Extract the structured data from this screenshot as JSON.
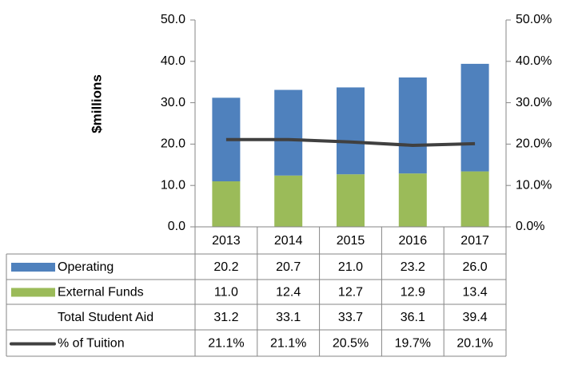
{
  "chart_data": {
    "type": "bar",
    "stacked": true,
    "y_label": "$millions",
    "categories": [
      "2013",
      "2014",
      "2015",
      "2016",
      "2017"
    ],
    "series": [
      {
        "name": "Operating",
        "color": "#4f81bd",
        "values": [
          20.2,
          20.7,
          21.0,
          23.2,
          26.0
        ],
        "value_labels": [
          "20.2",
          "20.7",
          "21.0",
          "23.2",
          "26.0"
        ]
      },
      {
        "name": "External Funds",
        "color": "#9bbb59",
        "values": [
          11.0,
          12.4,
          12.7,
          12.9,
          13.4
        ],
        "value_labels": [
          "11.0",
          "12.4",
          "12.7",
          "12.9",
          "13.4"
        ]
      },
      {
        "name": "% of Tuition",
        "type": "line",
        "axis": "y2",
        "color": "#404040",
        "values": [
          21.1,
          21.1,
          20.5,
          19.7,
          20.1
        ],
        "value_labels": [
          "21.1%",
          "21.1%",
          "20.5%",
          "19.7%",
          "20.1%"
        ]
      }
    ],
    "totals": {
      "name": "Total Student Aid",
      "values": [
        31.2,
        33.1,
        33.7,
        36.1,
        39.4
      ],
      "value_labels": [
        "31.2",
        "33.1",
        "33.7",
        "36.1",
        "39.4"
      ]
    },
    "ylim": [
      0,
      50
    ],
    "yticks": [
      {
        "value": 0,
        "label": "0.0"
      },
      {
        "value": 10,
        "label": "10.0"
      },
      {
        "value": 20,
        "label": "20.0"
      },
      {
        "value": 30,
        "label": "30.0"
      },
      {
        "value": 40,
        "label": "40.0"
      },
      {
        "value": 50,
        "label": "50.0"
      }
    ],
    "y2lim": [
      0,
      50
    ],
    "y2ticks": [
      {
        "value": 0,
        "label": "0.0%"
      },
      {
        "value": 10,
        "label": "10.0%"
      },
      {
        "value": 20,
        "label": "20.0%"
      },
      {
        "value": 30,
        "label": "30.0%"
      },
      {
        "value": 40,
        "label": "40.0%"
      },
      {
        "value": 50,
        "label": "50.0%"
      }
    ],
    "grid": false
  }
}
